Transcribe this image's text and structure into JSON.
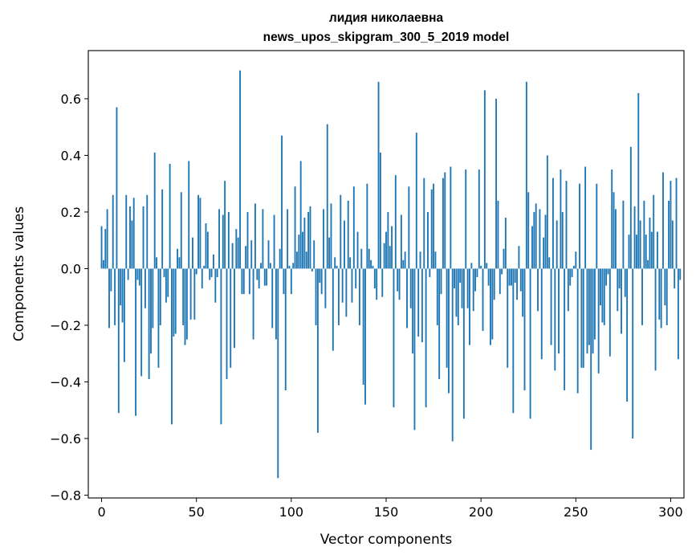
{
  "chart_data": {
    "type": "bar",
    "title_line1": "лидия николаевна",
    "title_line2": "news_upos_skipgram_300_5_2019 model",
    "xlabel": "Vector components",
    "ylabel": "Components values",
    "xlim": [
      -7,
      307
    ],
    "ylim": [
      -0.81,
      0.77
    ],
    "xticks": [
      0,
      50,
      100,
      150,
      200,
      250,
      300
    ],
    "xtick_labels": [
      "0",
      "50",
      "100",
      "150",
      "200",
      "250",
      "300"
    ],
    "yticks": [
      -0.8,
      -0.6,
      -0.4,
      -0.2,
      0.0,
      0.2,
      0.4,
      0.6
    ],
    "ytick_labels": [
      "−0.8",
      "−0.6",
      "−0.4",
      "−0.2",
      "0.0",
      "0.2",
      "0.4",
      "0.6"
    ],
    "bar_color": "#1f77b4",
    "grid": false,
    "values": [
      0.15,
      0.03,
      0.14,
      0.21,
      -0.21,
      -0.08,
      0.26,
      -0.2,
      0.57,
      -0.51,
      -0.13,
      -0.19,
      -0.33,
      0.26,
      -0.04,
      0.22,
      0.17,
      0.25,
      -0.52,
      -0.04,
      -0.06,
      -0.38,
      0.22,
      -0.14,
      0.26,
      -0.39,
      -0.3,
      -0.21,
      0.41,
      0.04,
      -0.35,
      -0.2,
      0.28,
      -0.03,
      -0.12,
      -0.1,
      0.37,
      -0.55,
      -0.24,
      -0.23,
      0.07,
      0.04,
      0.27,
      -0.2,
      -0.27,
      -0.25,
      0.38,
      -0.18,
      0.11,
      -0.18,
      -0.02,
      0.26,
      0.25,
      -0.07,
      0.01,
      0.16,
      0.13,
      -0.04,
      -0.03,
      0.05,
      -0.12,
      -0.03,
      0.21,
      -0.55,
      0.19,
      0.31,
      -0.39,
      0.2,
      -0.35,
      0.09,
      -0.28,
      0.14,
      0.11,
      0.7,
      -0.09,
      -0.09,
      0.08,
      0.2,
      -0.09,
      0.1,
      -0.25,
      0.23,
      -0.04,
      -0.07,
      0.02,
      0.21,
      -0.06,
      -0.06,
      0.1,
      0.02,
      -0.21,
      0.19,
      -0.25,
      -0.74,
      0.07,
      0.47,
      -0.09,
      -0.43,
      0.21,
      0.01,
      -0.09,
      0.02,
      0.29,
      0.06,
      0.12,
      0.38,
      0.13,
      0.18,
      0.06,
      0.2,
      0.22,
      -0.01,
      0.1,
      -0.2,
      -0.58,
      -0.05,
      -0.09,
      0.21,
      -0.14,
      0.51,
      0.11,
      0.23,
      -0.29,
      0.04,
      0.01,
      -0.2,
      0.26,
      -0.12,
      0.17,
      -0.17,
      0.24,
      0.04,
      -0.12,
      0.29,
      -0.07,
      0.13,
      -0.2,
      0.07,
      -0.41,
      -0.48,
      0.3,
      0.07,
      0.03,
      0.01,
      -0.07,
      -0.11,
      0.66,
      0.41,
      -0.1,
      0.09,
      0.13,
      0.2,
      0.08,
      0.15,
      -0.49,
      0.33,
      -0.08,
      -0.11,
      0.19,
      0.03,
      0.06,
      -0.21,
      0.29,
      -0.14,
      -0.3,
      -0.57,
      0.48,
      -0.24,
      0.06,
      -0.26,
      0.32,
      -0.49,
      0.2,
      -0.03,
      0.28,
      0.3,
      0.06,
      -0.2,
      -0.39,
      -0.09,
      0.32,
      0.34,
      -0.35,
      -0.44,
      0.36,
      -0.61,
      -0.07,
      -0.17,
      -0.2,
      -0.05,
      -0.14,
      -0.53,
      0.35,
      -0.14,
      -0.27,
      0.02,
      -0.15,
      -0.08,
      -0.03,
      0.35,
      0.01,
      -0.22,
      0.63,
      0.02,
      -0.06,
      -0.27,
      -0.25,
      -0.11,
      0.6,
      0.24,
      -0.09,
      -0.02,
      0.07,
      0.18,
      -0.35,
      -0.06,
      -0.06,
      -0.51,
      -0.05,
      -0.11,
      0.08,
      -0.08,
      -0.17,
      -0.43,
      0.66,
      0.27,
      -0.53,
      0.15,
      0.2,
      0.23,
      -0.15,
      0.21,
      -0.32,
      0.11,
      0.19,
      0.4,
      0.04,
      -0.27,
      0.32,
      -0.36,
      0.17,
      -0.3,
      0.35,
      0.2,
      -0.43,
      0.31,
      -0.15,
      -0.06,
      -0.03,
      0.01,
      0.06,
      -0.44,
      0.3,
      -0.35,
      -0.35,
      0.36,
      -0.3,
      -0.27,
      -0.64,
      -0.3,
      -0.25,
      0.3,
      -0.37,
      -0.13,
      -0.19,
      -0.2,
      -0.06,
      -0.02,
      -0.31,
      0.35,
      0.27,
      0.21,
      -0.15,
      -0.07,
      -0.23,
      0.24,
      -0.1,
      -0.47,
      0.12,
      0.43,
      -0.6,
      0.22,
      0.12,
      0.62,
      0.17,
      -0.2,
      0.24,
      0.12,
      0.03,
      0.18,
      0.13,
      0.26,
      -0.36,
      0.13,
      -0.18,
      -0.21,
      0.34,
      -0.13,
      -0.2,
      0.24,
      0.31,
      0.17,
      -0.07,
      0.32,
      -0.32,
      -0.04
    ]
  }
}
